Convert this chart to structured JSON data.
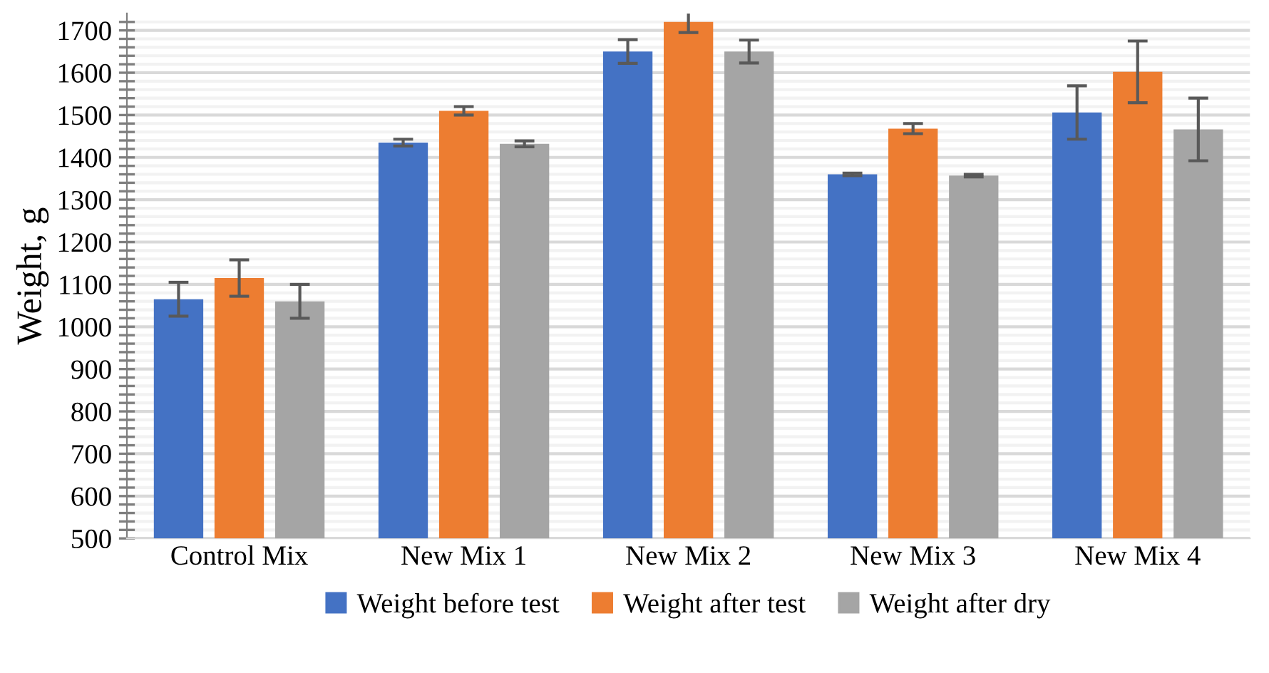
{
  "chart_data": {
    "type": "bar",
    "ylabel": "Weight, g",
    "categories": [
      "Control Mix",
      "New Mix 1",
      "New Mix 2",
      "New Mix 3",
      "New Mix 4"
    ],
    "series": [
      {
        "name": "Weight before test",
        "color": "#4472c4",
        "values": [
          1065,
          1435,
          1650,
          1360,
          1506
        ],
        "errors": [
          40,
          8,
          28,
          3,
          63
        ]
      },
      {
        "name": "Weight after test",
        "color": "#ed7d31",
        "values": [
          1115,
          1510,
          1720,
          1468,
          1602
        ],
        "errors": [
          43,
          10,
          25,
          12,
          73
        ]
      },
      {
        "name": "Weight after dry",
        "color": "#a5a5a5",
        "values": [
          1060,
          1432,
          1650,
          1357,
          1466
        ],
        "errors": [
          40,
          7,
          27,
          3,
          74
        ]
      }
    ],
    "ylim": [
      500,
      1740
    ],
    "yticks": [
      500,
      {
        "value": 520,
        "label": null
      },
      {
        "value": 540,
        "label": null
      },
      {
        "value": 560,
        "label": null
      },
      {
        "value": 580,
        "label": null
      },
      600,
      {
        "value": 620,
        "label": null
      },
      {
        "value": 640,
        "label": null
      },
      {
        "value": 660,
        "label": null
      },
      {
        "value": 680,
        "label": null
      },
      700,
      {
        "value": 720,
        "label": null
      },
      {
        "value": 740,
        "label": null
      },
      {
        "value": 760,
        "label": null
      },
      {
        "value": 780,
        "label": null
      },
      800,
      {
        "value": 820,
        "label": null
      },
      {
        "value": 840,
        "label": null
      },
      {
        "value": 860,
        "label": null
      },
      {
        "value": 880,
        "label": null
      },
      900,
      {
        "value": 920,
        "label": null
      },
      {
        "value": 940,
        "label": null
      },
      {
        "value": 960,
        "label": null
      },
      {
        "value": 980,
        "label": null
      },
      1000,
      {
        "value": 1020,
        "label": null
      },
      {
        "value": 1040,
        "label": null
      },
      {
        "value": 1060,
        "label": null
      },
      {
        "value": 1080,
        "label": null
      },
      1100,
      {
        "value": 1120,
        "label": null
      },
      {
        "value": 1140,
        "label": null
      },
      {
        "value": 1160,
        "label": null
      },
      {
        "value": 1180,
        "label": null
      },
      1200,
      {
        "value": 1220,
        "label": null
      },
      {
        "value": 1240,
        "label": null
      },
      {
        "value": 1260,
        "label": null
      },
      {
        "value": 1280,
        "label": null
      },
      1300,
      {
        "value": 1320,
        "label": null
      },
      {
        "value": 1340,
        "label": null
      },
      {
        "value": 1360,
        "label": null
      },
      {
        "value": 1380,
        "label": null
      },
      1400,
      {
        "value": 1420,
        "label": null
      },
      {
        "value": 1440,
        "label": null
      },
      {
        "value": 1460,
        "label": null
      },
      {
        "value": 1480,
        "label": null
      },
      1500,
      {
        "value": 1520,
        "label": null
      },
      {
        "value": 1540,
        "label": null
      },
      {
        "value": 1560,
        "label": null
      },
      {
        "value": 1580,
        "label": null
      },
      1600,
      {
        "value": 1620,
        "label": null
      },
      {
        "value": 1640,
        "label": null
      },
      {
        "value": 1660,
        "label": null
      },
      {
        "value": 1680,
        "label": null
      },
      1700,
      {
        "value": 1720,
        "label": null
      }
    ],
    "grid": "y",
    "legend": "bottom"
  }
}
